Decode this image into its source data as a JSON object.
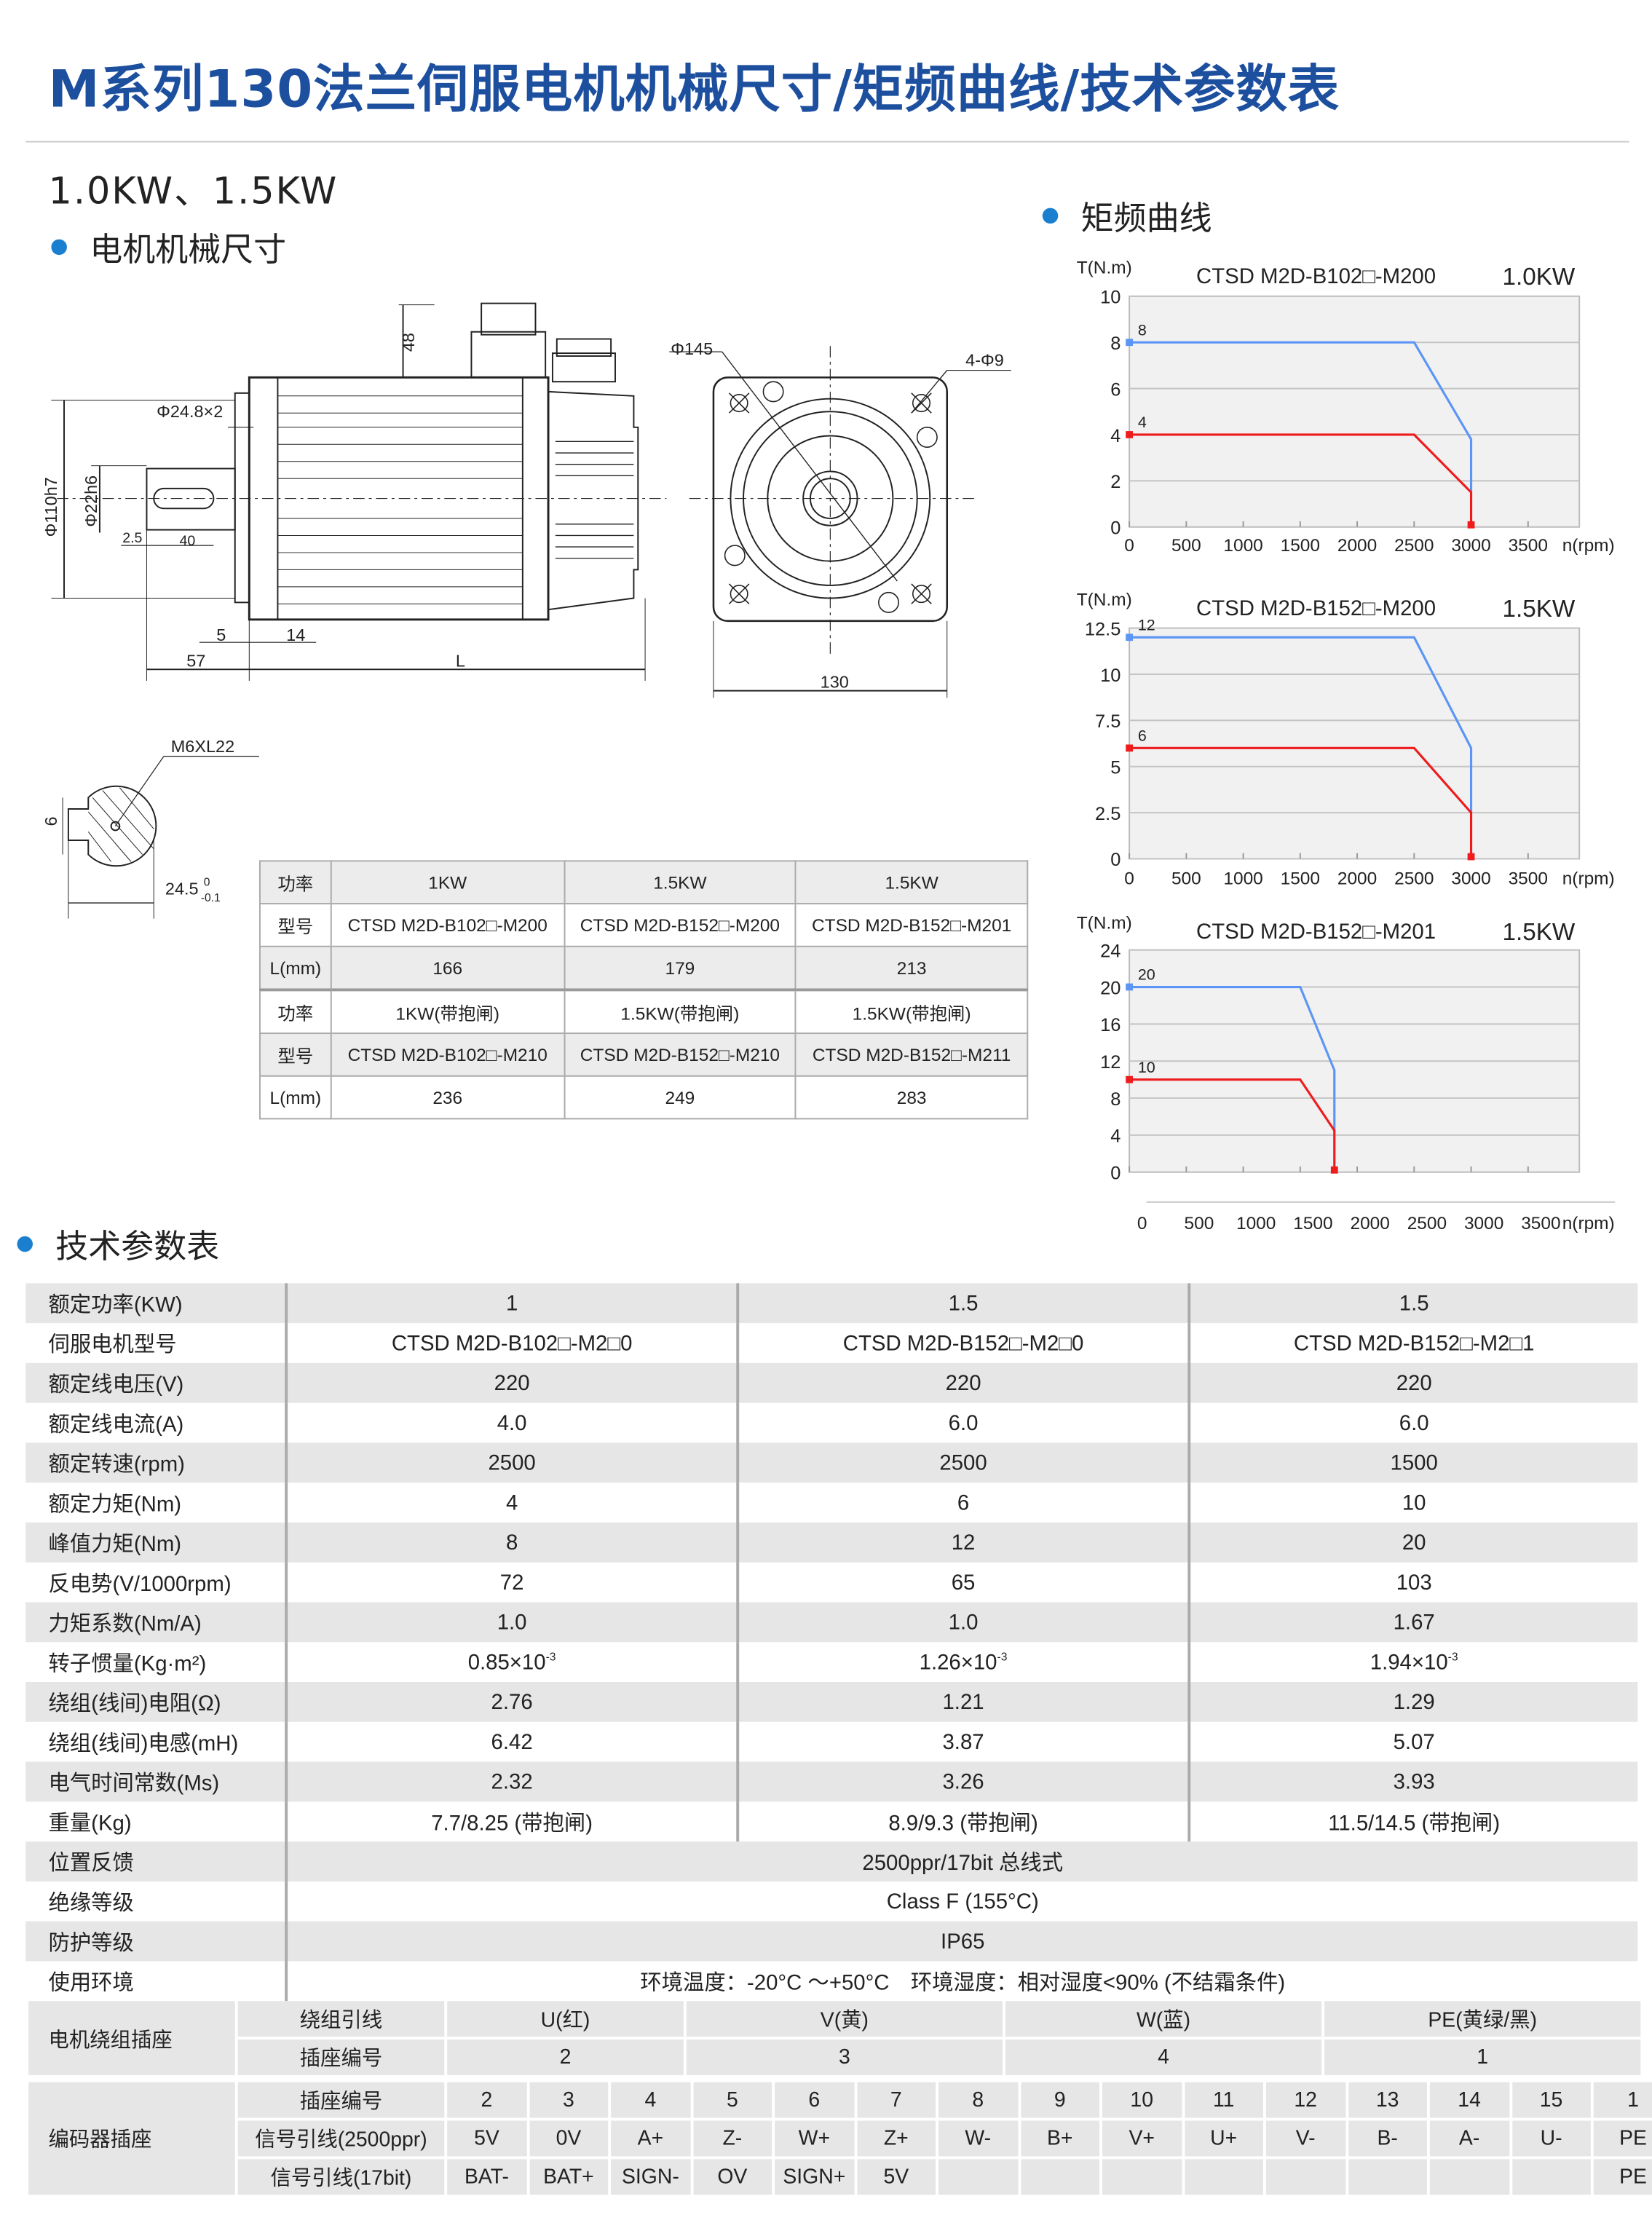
{
  "title": "M系列130法兰伺服电机机械尺寸/矩频曲线/技术参数表",
  "power_range": "1.0KW、1.5KW",
  "section_dimensions": "电机机械尺寸",
  "section_curves": "矩频曲线",
  "section_specs": "技术参数表",
  "drawing": {
    "labels": {
      "d48": "48",
      "phi145": "Φ145",
      "holes": "4-Φ9",
      "phi248": "Φ24.8×2",
      "phi110": "Φ110h7",
      "phi22": "Φ22h6",
      "d25": "2.5",
      "d40": "40",
      "d5": "5",
      "d14": "14",
      "d57": "57",
      "L": "L",
      "d130": "130",
      "thread": "M6XL22",
      "d6": "6",
      "d245": "24.5",
      "tol_up": "0",
      "tol_low": "-0.1"
    }
  },
  "dimension_table": {
    "rows": [
      [
        "功率",
        "1KW",
        "1.5KW",
        "1.5KW"
      ],
      [
        "型号",
        "CTSD M2D-B102□-M200",
        "CTSD M2D-B152□-M200",
        "CTSD M2D-B152□-M201"
      ],
      [
        "L(mm)",
        "166",
        "179",
        "213"
      ],
      [
        "功率",
        "1KW(带抱闸)",
        "1.5KW(带抱闸)",
        "1.5KW(带抱闸)"
      ],
      [
        "型号",
        "CTSD M2D-B102□-M210",
        "CTSD M2D-B152□-M210",
        "CTSD M2D-B152□-M211"
      ],
      [
        "L(mm)",
        "236",
        "249",
        "283"
      ]
    ]
  },
  "chart_data": [
    {
      "type": "line",
      "title": "CTSD M2D-B102□-M200",
      "power": "1.0KW",
      "ylabel": "T(N.m)",
      "xlabel": "n(rpm)",
      "xlim": [
        0,
        3950
      ],
      "ylim": [
        0,
        10
      ],
      "xticks": [
        "0",
        "500",
        "1000",
        "1500",
        "2000",
        "2500",
        "3000",
        "3500"
      ],
      "yticks": [
        "0",
        "2",
        "4",
        "6",
        "8",
        "10"
      ],
      "grid": true,
      "series": [
        {
          "color": "#5b95f5",
          "label": "8",
          "points": [
            [
              0,
              8
            ],
            [
              2500,
              8
            ],
            [
              3000,
              3.8
            ],
            [
              3000,
              1.5
            ]
          ]
        },
        {
          "color": "#ee1c1c",
          "label": "4",
          "points": [
            [
              0,
              4
            ],
            [
              2500,
              4
            ],
            [
              3000,
              1.5
            ],
            [
              3000,
              0
            ]
          ]
        }
      ]
    },
    {
      "type": "line",
      "title": "CTSD M2D-B152□-M200",
      "power": "1.5KW",
      "ylabel": "T(N.m)",
      "xlabel": "n(rpm)",
      "xlim": [
        0,
        3950
      ],
      "ylim": [
        0,
        12.5
      ],
      "xticks": [
        "0",
        "500",
        "1000",
        "1500",
        "2000",
        "2500",
        "3000",
        "3500"
      ],
      "yticks": [
        "0",
        "2.5",
        "5",
        "7.5",
        "10",
        "12.5"
      ],
      "grid": true,
      "series": [
        {
          "color": "#5b95f5",
          "label": "12",
          "points": [
            [
              0,
              12
            ],
            [
              2500,
              12
            ],
            [
              3000,
              6
            ],
            [
              3000,
              2.5
            ]
          ]
        },
        {
          "color": "#ee1c1c",
          "label": "6",
          "points": [
            [
              0,
              6
            ],
            [
              2500,
              6
            ],
            [
              3000,
              2.5
            ],
            [
              3000,
              0
            ]
          ]
        }
      ]
    },
    {
      "type": "line",
      "title": "CTSD M2D-B152□-M201",
      "power": "1.5KW",
      "ylabel": "T(N.m)",
      "xlabel": "n(rpm)",
      "xlim": [
        0,
        3950
      ],
      "ylim": [
        0,
        24
      ],
      "xticks": [
        "0",
        "500",
        "1000",
        "1500",
        "2000",
        "2500",
        "3000",
        "3500"
      ],
      "yticks": [
        "0",
        "4",
        "8",
        "12",
        "16",
        "20",
        "24"
      ],
      "grid": true,
      "series": [
        {
          "color": "#5b95f5",
          "label": "20",
          "points": [
            [
              0,
              20
            ],
            [
              1500,
              20
            ],
            [
              1800,
              11
            ],
            [
              1800,
              4.5
            ]
          ]
        },
        {
          "color": "#ee1c1c",
          "label": "10",
          "points": [
            [
              0,
              10
            ],
            [
              1500,
              10
            ],
            [
              1800,
              4.5
            ],
            [
              1800,
              0
            ]
          ]
        }
      ]
    }
  ],
  "specs": {
    "rows": [
      [
        "额定功率(KW)",
        "1",
        "1.5",
        "1.5"
      ],
      [
        "伺服电机型号",
        "CTSD M2D-B102□-M2□0",
        "CTSD M2D-B152□-M2□0",
        "CTSD M2D-B152□-M2□1"
      ],
      [
        "额定线电压(V)",
        "220",
        "220",
        "220"
      ],
      [
        "额定线电流(A)",
        "4.0",
        "6.0",
        "6.0"
      ],
      [
        "额定转速(rpm)",
        "2500",
        "2500",
        "1500"
      ],
      [
        "额定力矩(Nm)",
        "4",
        "6",
        "10"
      ],
      [
        "峰值力矩(Nm)",
        "8",
        "12",
        "20"
      ],
      [
        "反电势(V/1000rpm)",
        "72",
        "65",
        "103"
      ],
      [
        "力矩系数(Nm/A)",
        "1.0",
        "1.0",
        "1.67"
      ]
    ],
    "inertia": {
      "label": "转子惯量(Kg·m²)",
      "values": [
        "0.85×10",
        "1.26×10",
        "1.94×10"
      ],
      "exp": "-3"
    },
    "rows2": [
      [
        "绕组(线间)电阻(Ω)",
        "2.76",
        "1.21",
        "1.29"
      ],
      [
        "绕组(线间)电感(mH)",
        "6.42",
        "3.87",
        "5.07"
      ],
      [
        "电气时间常数(Ms)",
        "2.32",
        "3.26",
        "3.93"
      ],
      [
        "重量(Kg)",
        "7.7/8.25 (带抱闸)",
        "8.9/9.3 (带抱闸)",
        "11.5/14.5 (带抱闸)"
      ]
    ],
    "merged": [
      [
        "位置反馈",
        "2500ppr/17bit 总线式"
      ],
      [
        "绝缘等级",
        "Class F (155°C)"
      ],
      [
        "防护等级",
        "IP65"
      ],
      [
        "使用环境",
        "环境温度：-20°C ～+50°C　环境湿度：相对湿度<90% (不结霜条件)"
      ]
    ]
  },
  "winding_socket": {
    "label": "电机绕组插座",
    "row1_label": "绕组引线",
    "row1": [
      "U(红)",
      "V(黄)",
      "W(蓝)",
      "PE(黄绿/黑)"
    ],
    "row2_label": "插座编号",
    "row2": [
      "2",
      "3",
      "4",
      "1"
    ]
  },
  "encoder_socket": {
    "label": "编码器插座",
    "pins_label": "插座编号",
    "pins": [
      "2",
      "3",
      "4",
      "5",
      "6",
      "7",
      "8",
      "9",
      "10",
      "11",
      "12",
      "13",
      "14",
      "15",
      "1"
    ],
    "sig2500_label": "信号引线(2500ppr)",
    "sig2500": [
      "5V",
      "0V",
      "A+",
      "Z-",
      "W+",
      "Z+",
      "W-",
      "B+",
      "V+",
      "U+",
      "V-",
      "B-",
      "A-",
      "U-",
      "PE"
    ],
    "sig17_label": "信号引线(17bit)",
    "sig17": [
      "BAT-",
      "BAT+",
      "SIGN-",
      "OV",
      "SIGN+",
      "5V",
      "",
      "",
      "",
      "",
      "",
      "",
      "",
      "",
      "PE"
    ]
  }
}
